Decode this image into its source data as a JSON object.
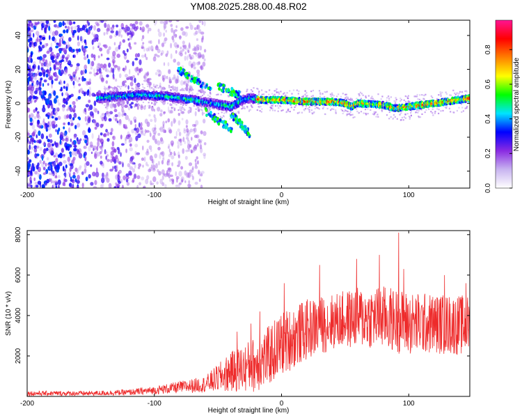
{
  "title": "YM08.2025.288.00.48.R02",
  "chart_data": [
    {
      "type": "heatmap",
      "name": "spectrogram",
      "xlabel": "Height of straight line (km)",
      "ylabel": "Frequency (Hz)",
      "xlim": [
        -200,
        148
      ],
      "ylim": [
        -50,
        49
      ],
      "xticks": [
        -200,
        -100,
        0,
        100
      ],
      "xtick_labels": [
        "-200",
        "-100",
        "0",
        "100"
      ],
      "yticks": [
        -40,
        -20,
        0,
        20,
        40
      ],
      "ytick_labels": [
        "-40",
        "-20",
        "0",
        "20",
        "40"
      ],
      "ridge": {
        "x": [
          -145,
          -130,
          -110,
          -90,
          -70,
          -55,
          -40,
          -30,
          -25,
          -15,
          0,
          20,
          40,
          50,
          55,
          60,
          80,
          90,
          100,
          110,
          130,
          148
        ],
        "y": [
          3,
          4,
          5,
          4,
          2,
          0,
          -2,
          2,
          3,
          2,
          2,
          1,
          1,
          0,
          -2,
          0,
          -1,
          -3,
          -2,
          -1,
          1,
          3
        ]
      },
      "colorbar": {
        "label": "Normalized spectral amplitude",
        "range": [
          0,
          0.97
        ],
        "ticks": [
          0.0,
          0.2,
          0.4,
          0.6,
          0.8
        ],
        "tick_labels": [
          "0.0",
          "0.2",
          "0.4",
          "0.6",
          "0.8"
        ],
        "stops": [
          "#ffffff",
          "#c8b4f0",
          "#8a2be2",
          "#0000ff",
          "#00e5ff",
          "#00ff00",
          "#ffff00",
          "#ff8000",
          "#ff0000",
          "#ff1493"
        ]
      }
    },
    {
      "type": "line",
      "name": "snr",
      "xlabel": "Height of straight line (km)",
      "ylabel": "SNR (10 * v/v)",
      "xlim": [
        -200,
        148
      ],
      "ylim": [
        0,
        8200
      ],
      "xticks": [
        -200,
        -100,
        0,
        100
      ],
      "xtick_labels": [
        "-200",
        "-100",
        "0",
        "100"
      ],
      "yticks": [
        2000,
        4000,
        6000,
        8000
      ],
      "ytick_labels": [
        "2000",
        "4000",
        "6000",
        "8000"
      ],
      "color": "#ee2b2b",
      "envelope": {
        "x": [
          -200,
          -150,
          -120,
          -100,
          -80,
          -60,
          -50,
          -40,
          -30,
          -20,
          -10,
          0,
          20,
          40,
          60,
          80,
          100,
          120,
          148
        ],
        "mean": [
          150,
          150,
          200,
          300,
          450,
          600,
          900,
          1200,
          1400,
          1600,
          2000,
          2600,
          3300,
          3700,
          3900,
          3900,
          3600,
          3600,
          3500
        ],
        "spread": [
          120,
          120,
          150,
          200,
          300,
          400,
          700,
          1000,
          1200,
          1400,
          1500,
          1600,
          1500,
          1400,
          1500,
          1600,
          1600,
          1500,
          1500
        ]
      },
      "peaks": [
        {
          "x": -78,
          "y": 650
        },
        {
          "x": -40,
          "y": 2100
        },
        {
          "x": -35,
          "y": 3200
        },
        {
          "x": -24,
          "y": 3600
        },
        {
          "x": -17,
          "y": 4200
        },
        {
          "x": 2,
          "y": 5600
        },
        {
          "x": 30,
          "y": 6500
        },
        {
          "x": 59,
          "y": 6800
        },
        {
          "x": 77,
          "y": 7000
        },
        {
          "x": 92,
          "y": 8100
        },
        {
          "x": 96,
          "y": 6300
        },
        {
          "x": 128,
          "y": 6000
        },
        {
          "x": 145,
          "y": 5600
        }
      ]
    }
  ]
}
